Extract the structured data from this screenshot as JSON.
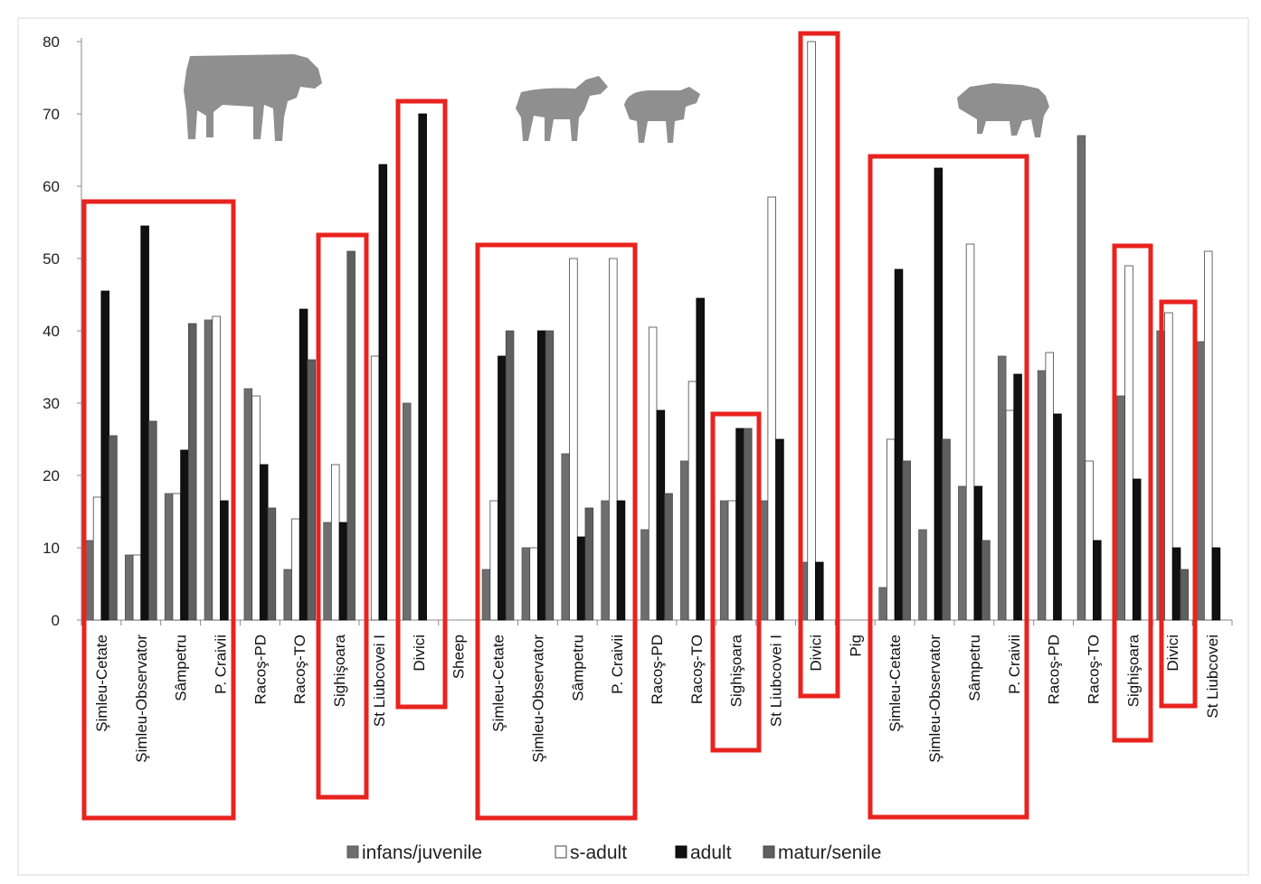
{
  "chart_data": {
    "type": "bar",
    "title": "",
    "xlabel": "",
    "ylabel": "",
    "ylim": [
      0,
      80
    ],
    "yticks": [
      0,
      10,
      20,
      30,
      40,
      50,
      60,
      70,
      80
    ],
    "grid": false,
    "legend_position": "bottom",
    "categories": [
      "Şimleu-Cetate",
      "Şimleu-Observator",
      "Sâmpetru",
      "P. Craivii",
      "Racoş-PD",
      "Racoş-TO",
      "Sighişoara",
      "St Liubcovei I",
      "Divici",
      "Sheep",
      "Şimleu-Cetate",
      "Şimleu-Observator",
      "Sâmpetru",
      "P. Craivii",
      "Racoş-PD",
      "Racoş-TO",
      "Sighişoara",
      "St Liubcovei I",
      "Divici",
      "Pig",
      "Şimleu-Cetate",
      "Şimleu-Observator",
      "Sâmpetru",
      "P. Craivii",
      "Racoş-PD",
      "Racoş-TO",
      "Sighişoara",
      "Divici",
      "St Liubcovei"
    ],
    "series": [
      {
        "name": "infans/juvenile",
        "color": "#6e6e6e",
        "values": [
          11,
          9,
          17.5,
          41.5,
          32,
          7,
          13.5,
          0,
          30,
          0,
          7,
          10,
          23,
          16.5,
          12.5,
          22,
          16.5,
          16.5,
          8,
          0,
          4.5,
          12.5,
          18.5,
          36.5,
          34.5,
          67,
          31,
          40,
          38.5
        ]
      },
      {
        "name": "s-adult",
        "color": "#ffffff",
        "values": [
          17,
          9,
          17.5,
          42,
          31,
          14,
          21.5,
          36.5,
          0,
          0,
          16.5,
          10,
          50,
          50,
          40.5,
          33,
          16.5,
          58.5,
          80,
          0,
          25,
          0,
          52,
          29,
          37,
          22,
          49,
          42.5,
          51
        ]
      },
      {
        "name": "adult",
        "color": "#111111",
        "values": [
          45.5,
          54.5,
          23.5,
          16.5,
          21.5,
          43,
          13.5,
          63,
          70,
          0,
          36.5,
          40,
          11.5,
          16.5,
          29,
          44.5,
          26.5,
          25,
          8,
          0,
          48.5,
          62.5,
          18.5,
          34,
          28.5,
          11,
          19.5,
          10,
          10
        ]
      },
      {
        "name": "matur/senile",
        "color": "#5f5f5f",
        "values": [
          25.5,
          27.5,
          41,
          0,
          15.5,
          36,
          51,
          0,
          0,
          0,
          40,
          40,
          15.5,
          0,
          17.5,
          0,
          26.5,
          0,
          0,
          0,
          22,
          25,
          11,
          0,
          0,
          0,
          0,
          7,
          0
        ]
      }
    ],
    "annotations": [
      "cattle-silhouette",
      "goat-silhouette",
      "sheep-silhouette",
      "pig-silhouette",
      "highlight-box-cattle-simleu-pcraivii",
      "highlight-box-cattle-sighisoara",
      "highlight-box-cattle-divici",
      "highlight-box-sheep-simleu-pcraivii",
      "highlight-box-sheep-sighisoara",
      "highlight-box-sheep-divici",
      "highlight-box-pig-simleu-pcraivii",
      "highlight-box-pig-sighisoara",
      "highlight-box-pig-divici"
    ],
    "highlight_color": "#e8231f"
  }
}
